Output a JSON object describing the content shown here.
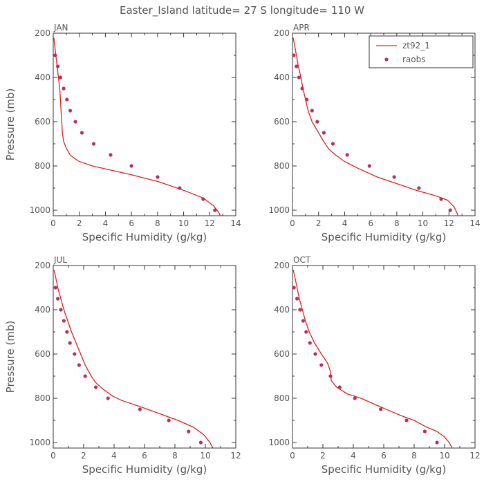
{
  "figure": {
    "title": "Easter_Island  latitude= 27 S longitude= 110 W"
  },
  "legend": {
    "model_label": "zt92_1",
    "obs_label": "raobs",
    "panel": "APR"
  },
  "colors": {
    "model_line": "#dd2020",
    "obs_marker": "#b5305c",
    "axes": "#333333",
    "text": "#555555"
  },
  "chart_data": [
    {
      "type": "line",
      "title": "JAN",
      "xlabel": "Specific Humidity (g/kg)",
      "ylabel": "Pressure (mb)",
      "xlim": [
        0,
        14
      ],
      "ylim": [
        1025,
        200
      ],
      "xticks": [
        0,
        2,
        4,
        6,
        8,
        10,
        12,
        14
      ],
      "yticks": [
        200,
        400,
        600,
        800,
        1000
      ],
      "y_inverted": true,
      "series": [
        {
          "name": "zt92_1",
          "kind": "line",
          "points": [
            [
              0.05,
              220
            ],
            [
              0.1,
              250
            ],
            [
              0.2,
              300
            ],
            [
              0.3,
              350
            ],
            [
              0.4,
              400
            ],
            [
              0.5,
              450
            ],
            [
              0.55,
              500
            ],
            [
              0.6,
              550
            ],
            [
              0.65,
              600
            ],
            [
              0.7,
              650
            ],
            [
              0.8,
              690
            ],
            [
              1.0,
              720
            ],
            [
              1.3,
              750
            ],
            [
              1.5,
              760
            ],
            [
              2.0,
              780
            ],
            [
              3.0,
              800
            ],
            [
              4.5,
              820
            ],
            [
              6.0,
              840
            ],
            [
              8.0,
              870
            ],
            [
              10.0,
              910
            ],
            [
              11.5,
              945
            ],
            [
              12.3,
              980
            ],
            [
              12.7,
              1010
            ],
            [
              12.8,
              1025
            ]
          ]
        },
        {
          "name": "raobs",
          "kind": "scatter",
          "points": [
            [
              0.15,
              300
            ],
            [
              0.35,
              350
            ],
            [
              0.55,
              400
            ],
            [
              0.8,
              450
            ],
            [
              1.05,
              500
            ],
            [
              1.3,
              550
            ],
            [
              1.7,
              600
            ],
            [
              2.2,
              650
            ],
            [
              3.1,
              700
            ],
            [
              4.4,
              750
            ],
            [
              6.0,
              800
            ],
            [
              8.0,
              850
            ],
            [
              9.7,
              900
            ],
            [
              11.5,
              950
            ],
            [
              12.4,
              1000
            ]
          ]
        }
      ]
    },
    {
      "type": "line",
      "title": "APR",
      "xlabel": "Specific Humidity (g/kg)",
      "ylabel": "",
      "xlim": [
        0,
        14
      ],
      "ylim": [
        1025,
        200
      ],
      "xticks": [
        0,
        2,
        4,
        6,
        8,
        10,
        12,
        14
      ],
      "yticks": [
        200,
        400,
        600,
        800,
        1000
      ],
      "y_inverted": true,
      "series": [
        {
          "name": "zt92_1",
          "kind": "line",
          "points": [
            [
              0.05,
              220
            ],
            [
              0.15,
              250
            ],
            [
              0.3,
              300
            ],
            [
              0.45,
              350
            ],
            [
              0.65,
              400
            ],
            [
              0.8,
              450
            ],
            [
              1.0,
              500
            ],
            [
              1.2,
              550
            ],
            [
              1.5,
              600
            ],
            [
              2.0,
              650
            ],
            [
              2.4,
              690
            ],
            [
              2.8,
              725
            ],
            [
              3.3,
              750
            ],
            [
              4.0,
              780
            ],
            [
              5.0,
              810
            ],
            [
              6.5,
              850
            ],
            [
              8.0,
              880
            ],
            [
              9.5,
              910
            ],
            [
              11.0,
              935
            ],
            [
              11.9,
              955
            ],
            [
              12.4,
              985
            ],
            [
              12.6,
              1010
            ],
            [
              12.7,
              1025
            ]
          ]
        },
        {
          "name": "raobs",
          "kind": "scatter",
          "points": [
            [
              0.1,
              300
            ],
            [
              0.3,
              350
            ],
            [
              0.5,
              400
            ],
            [
              0.75,
              450
            ],
            [
              1.1,
              500
            ],
            [
              1.5,
              550
            ],
            [
              1.9,
              600
            ],
            [
              2.4,
              650
            ],
            [
              3.1,
              700
            ],
            [
              4.2,
              750
            ],
            [
              5.9,
              800
            ],
            [
              7.8,
              850
            ],
            [
              9.7,
              900
            ],
            [
              11.4,
              950
            ],
            [
              12.1,
              1000
            ]
          ]
        }
      ]
    },
    {
      "type": "line",
      "title": "JUL",
      "xlabel": "Specific Humidity (g/kg)",
      "ylabel": "Pressure (mb)",
      "xlim": [
        0,
        12
      ],
      "ylim": [
        1025,
        200
      ],
      "xticks": [
        0,
        2,
        4,
        6,
        8,
        10,
        12
      ],
      "yticks": [
        200,
        400,
        600,
        800,
        1000
      ],
      "y_inverted": true,
      "series": [
        {
          "name": "zt92_1",
          "kind": "line",
          "points": [
            [
              0.05,
              220
            ],
            [
              0.15,
              250
            ],
            [
              0.3,
              300
            ],
            [
              0.5,
              350
            ],
            [
              0.7,
              400
            ],
            [
              0.95,
              450
            ],
            [
              1.2,
              500
            ],
            [
              1.5,
              550
            ],
            [
              1.8,
              600
            ],
            [
              2.1,
              650
            ],
            [
              2.5,
              700
            ],
            [
              2.8,
              730
            ],
            [
              3.3,
              760
            ],
            [
              3.9,
              790
            ],
            [
              4.5,
              810
            ],
            [
              5.8,
              840
            ],
            [
              7.0,
              870
            ],
            [
              8.2,
              900
            ],
            [
              9.2,
              930
            ],
            [
              9.9,
              965
            ],
            [
              10.3,
              1000
            ],
            [
              10.5,
              1025
            ]
          ]
        },
        {
          "name": "raobs",
          "kind": "scatter",
          "points": [
            [
              0.15,
              300
            ],
            [
              0.3,
              350
            ],
            [
              0.5,
              400
            ],
            [
              0.7,
              450
            ],
            [
              0.9,
              500
            ],
            [
              1.1,
              550
            ],
            [
              1.4,
              600
            ],
            [
              1.7,
              650
            ],
            [
              2.1,
              700
            ],
            [
              2.8,
              750
            ],
            [
              3.6,
              800
            ],
            [
              5.7,
              850
            ],
            [
              7.6,
              900
            ],
            [
              8.9,
              950
            ],
            [
              9.7,
              1000
            ]
          ]
        }
      ]
    },
    {
      "type": "line",
      "title": "OCT",
      "xlabel": "Specific Humidity (g/kg)",
      "ylabel": "",
      "xlim": [
        0,
        12
      ],
      "ylim": [
        1025,
        200
      ],
      "xticks": [
        0,
        2,
        4,
        6,
        8,
        10,
        12
      ],
      "yticks": [
        200,
        400,
        600,
        800,
        1000
      ],
      "y_inverted": true,
      "series": [
        {
          "name": "zt92_1",
          "kind": "line",
          "points": [
            [
              0.05,
              220
            ],
            [
              0.15,
              250
            ],
            [
              0.3,
              300
            ],
            [
              0.45,
              350
            ],
            [
              0.65,
              400
            ],
            [
              0.85,
              450
            ],
            [
              1.1,
              500
            ],
            [
              1.45,
              550
            ],
            [
              1.9,
              600
            ],
            [
              2.3,
              640
            ],
            [
              2.5,
              680
            ],
            [
              2.55,
              720
            ],
            [
              2.9,
              750
            ],
            [
              3.6,
              780
            ],
            [
              4.5,
              800
            ],
            [
              5.5,
              830
            ],
            [
              6.5,
              860
            ],
            [
              7.2,
              880
            ],
            [
              8.0,
              900
            ],
            [
              8.8,
              930
            ],
            [
              9.5,
              950
            ],
            [
              10.0,
              975
            ],
            [
              10.3,
              1000
            ],
            [
              10.5,
              1025
            ]
          ]
        },
        {
          "name": "raobs",
          "kind": "scatter",
          "points": [
            [
              0.1,
              300
            ],
            [
              0.3,
              350
            ],
            [
              0.5,
              400
            ],
            [
              0.7,
              450
            ],
            [
              0.9,
              500
            ],
            [
              1.15,
              550
            ],
            [
              1.5,
              600
            ],
            [
              1.9,
              650
            ],
            [
              2.5,
              700
            ],
            [
              3.1,
              750
            ],
            [
              4.1,
              800
            ],
            [
              5.8,
              850
            ],
            [
              7.5,
              900
            ],
            [
              8.7,
              950
            ],
            [
              9.5,
              1000
            ]
          ]
        }
      ]
    }
  ]
}
